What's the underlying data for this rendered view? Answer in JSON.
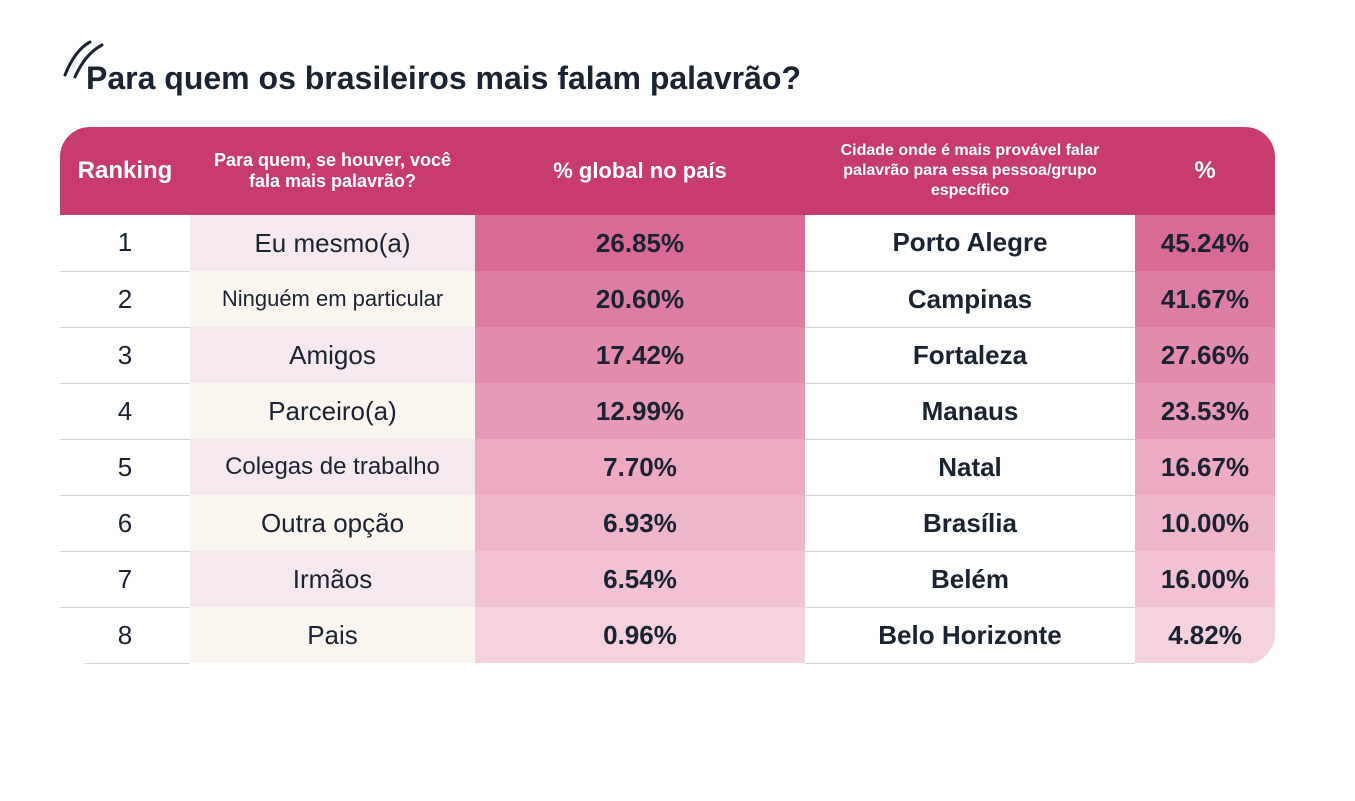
{
  "title": "Para quem os brasileiros mais falam palavrão?",
  "table": {
    "headers": {
      "rank": "Ranking",
      "target": "Para quem, se houver, você fala mais palavrão?",
      "global": "% global no país",
      "city": "Cidade onde é mais provável falar palavrão para essa pessoa/grupo específico",
      "pct": "%"
    },
    "header_colors": {
      "rank_bg": "#c73b6f",
      "target_bg": "#c73b6f",
      "global_bg": "#c73b6f",
      "city_bg": "#c73b6f",
      "pct_bg": "#c73b6f"
    },
    "header_font_sizes": {
      "rank": 24,
      "target": 18,
      "global": 22,
      "city": 16,
      "pct": 24
    },
    "rows": [
      {
        "rank": "1",
        "target": "Eu mesmo(a)",
        "global": "26.85%",
        "city": "Porto Alegre",
        "pct": "45.24%",
        "target_bg": "#f5e8ee",
        "global_bg": "#d86a95",
        "pct_bg": "#d86a95",
        "target_fs": 26
      },
      {
        "rank": "2",
        "target": "Ninguém em particular",
        "global": "20.60%",
        "city": "Campinas",
        "pct": "41.67%",
        "target_bg": "#faf5ef",
        "global_bg": "#de7da3",
        "pct_bg": "#de7da3",
        "target_fs": 22
      },
      {
        "rank": "3",
        "target": "Amigos",
        "global": "17.42%",
        "city": "Fortaleza",
        "pct": "27.66%",
        "target_bg": "#f5e8ee",
        "global_bg": "#e28bad",
        "pct_bg": "#e28bad",
        "target_fs": 26
      },
      {
        "rank": "4",
        "target": "Parceiro(a)",
        "global": "12.99%",
        "city": "Manaus",
        "pct": "23.53%",
        "target_bg": "#faf5ef",
        "global_bg": "#e79ab8",
        "pct_bg": "#e79ab8",
        "target_fs": 26
      },
      {
        "rank": "5",
        "target": "Colegas de trabalho",
        "global": "7.70%",
        "city": "Natal",
        "pct": "16.67%",
        "target_bg": "#f5e8ee",
        "global_bg": "#ecaac3",
        "pct_bg": "#ecaac3",
        "target_fs": 24
      },
      {
        "rank": "6",
        "target": "Outra opção",
        "global": "6.93%",
        "city": "Brasília",
        "pct": "10.00%",
        "target_bg": "#faf5ef",
        "global_bg": "#efb6cb",
        "pct_bg": "#efb6cb",
        "target_fs": 26
      },
      {
        "rank": "7",
        "target": "Irmãos",
        "global": "6.54%",
        "city": "Belém",
        "pct": "16.00%",
        "target_bg": "#f5e8ee",
        "global_bg": "#f2c1d3",
        "pct_bg": "#f2c1d3",
        "target_fs": 26
      },
      {
        "rank": "8",
        "target": "Pais",
        "global": "0.96%",
        "city": "Belo Horizonte",
        "pct": "4.82%",
        "target_bg": "#faf5ef",
        "global_bg": "#f6d1de",
        "pct_bg": "#f6d1de",
        "target_fs": 26
      }
    ],
    "text_color": "#1a2332",
    "body_font_family": "system-ui"
  },
  "slash_icon_color": "#1a2332"
}
